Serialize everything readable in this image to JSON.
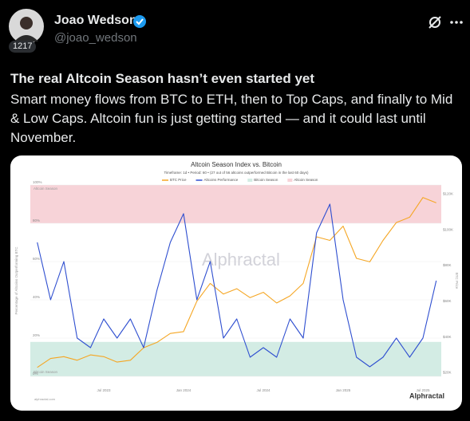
{
  "author": {
    "name": "Joao Wedson",
    "handle": "@joao_wedson",
    "badge": "1217"
  },
  "post": {
    "title": "The real Altcoin Season hasn’t even started yet",
    "text": "Smart money flows from BTC to ETH, then to Top Caps, and finally to Mid & Low Caps. Altcoin fun is just getting started — and it could last until November."
  },
  "chart_data": {
    "type": "line",
    "title": "Altcoin Season Index vs. Bitcoin",
    "subtitle": "Timeframe: 1d • Period: 60 • (27 out of 56 altcoins outperformed Bitcoin in the last 60 days)",
    "y_label": "Percentage of Altcoins Outperforming BTC",
    "y2_label": "BTC Price",
    "watermark": "Alphractal",
    "source": "alphractal.com",
    "categories": [
      null,
      null,
      null,
      null,
      null,
      "Jul 2023",
      null,
      null,
      null,
      null,
      null,
      "Jan 2024",
      null,
      null,
      null,
      null,
      null,
      "Jul 2024",
      null,
      null,
      null,
      null,
      null,
      "Jan 2025",
      null,
      null,
      null,
      null,
      null,
      "Jul 2025",
      null
    ],
    "series": [
      {
        "name": "BTC Price",
        "color": "#f5a623",
        "axis": "y2",
        "values": [
          23000,
          28000,
          29000,
          27000,
          30000,
          29000,
          26000,
          27000,
          34000,
          37000,
          42000,
          43000,
          60000,
          70000,
          64000,
          67000,
          62000,
          65000,
          59000,
          63000,
          70000,
          96000,
          94000,
          102000,
          84000,
          82000,
          94000,
          104000,
          107000,
          118000,
          115000
        ]
      },
      {
        "name": "Altcoins Performance",
        "color": "#2f4fd0",
        "values": [
          70,
          40,
          60,
          20,
          15,
          30,
          20,
          30,
          15,
          45,
          70,
          85,
          40,
          60,
          20,
          30,
          10,
          15,
          10,
          30,
          20,
          75,
          90,
          40,
          10,
          5,
          10,
          20,
          10,
          20,
          50
        ]
      }
    ],
    "bands": [
      {
        "name": "Bitcoin Season",
        "range": [
          0,
          18
        ],
        "color": "#d3ece4"
      },
      {
        "name": "Altcoin Season",
        "range": [
          80,
          100
        ],
        "color": "#f7d3d8"
      }
    ],
    "ylim": [
      0,
      100
    ],
    "yticks": [
      {
        "value": 0,
        "label": "0%"
      },
      {
        "value": 20,
        "label": "20%"
      },
      {
        "value": 40,
        "label": "40%"
      },
      {
        "value": 60,
        "label": "60%"
      },
      {
        "value": 80,
        "label": "80%"
      },
      {
        "value": 100,
        "label": "100%"
      }
    ],
    "y2lim": [
      18000,
      125000
    ],
    "y2ticks": [
      {
        "value": 20000,
        "label": "$20K"
      },
      {
        "value": 40000,
        "label": "$40K"
      },
      {
        "value": 60000,
        "label": "$60K"
      },
      {
        "value": 80000,
        "label": "$80K"
      },
      {
        "value": 100000,
        "label": "$100K"
      },
      {
        "value": 120000,
        "label": "$120K"
      }
    ],
    "grid": true
  }
}
